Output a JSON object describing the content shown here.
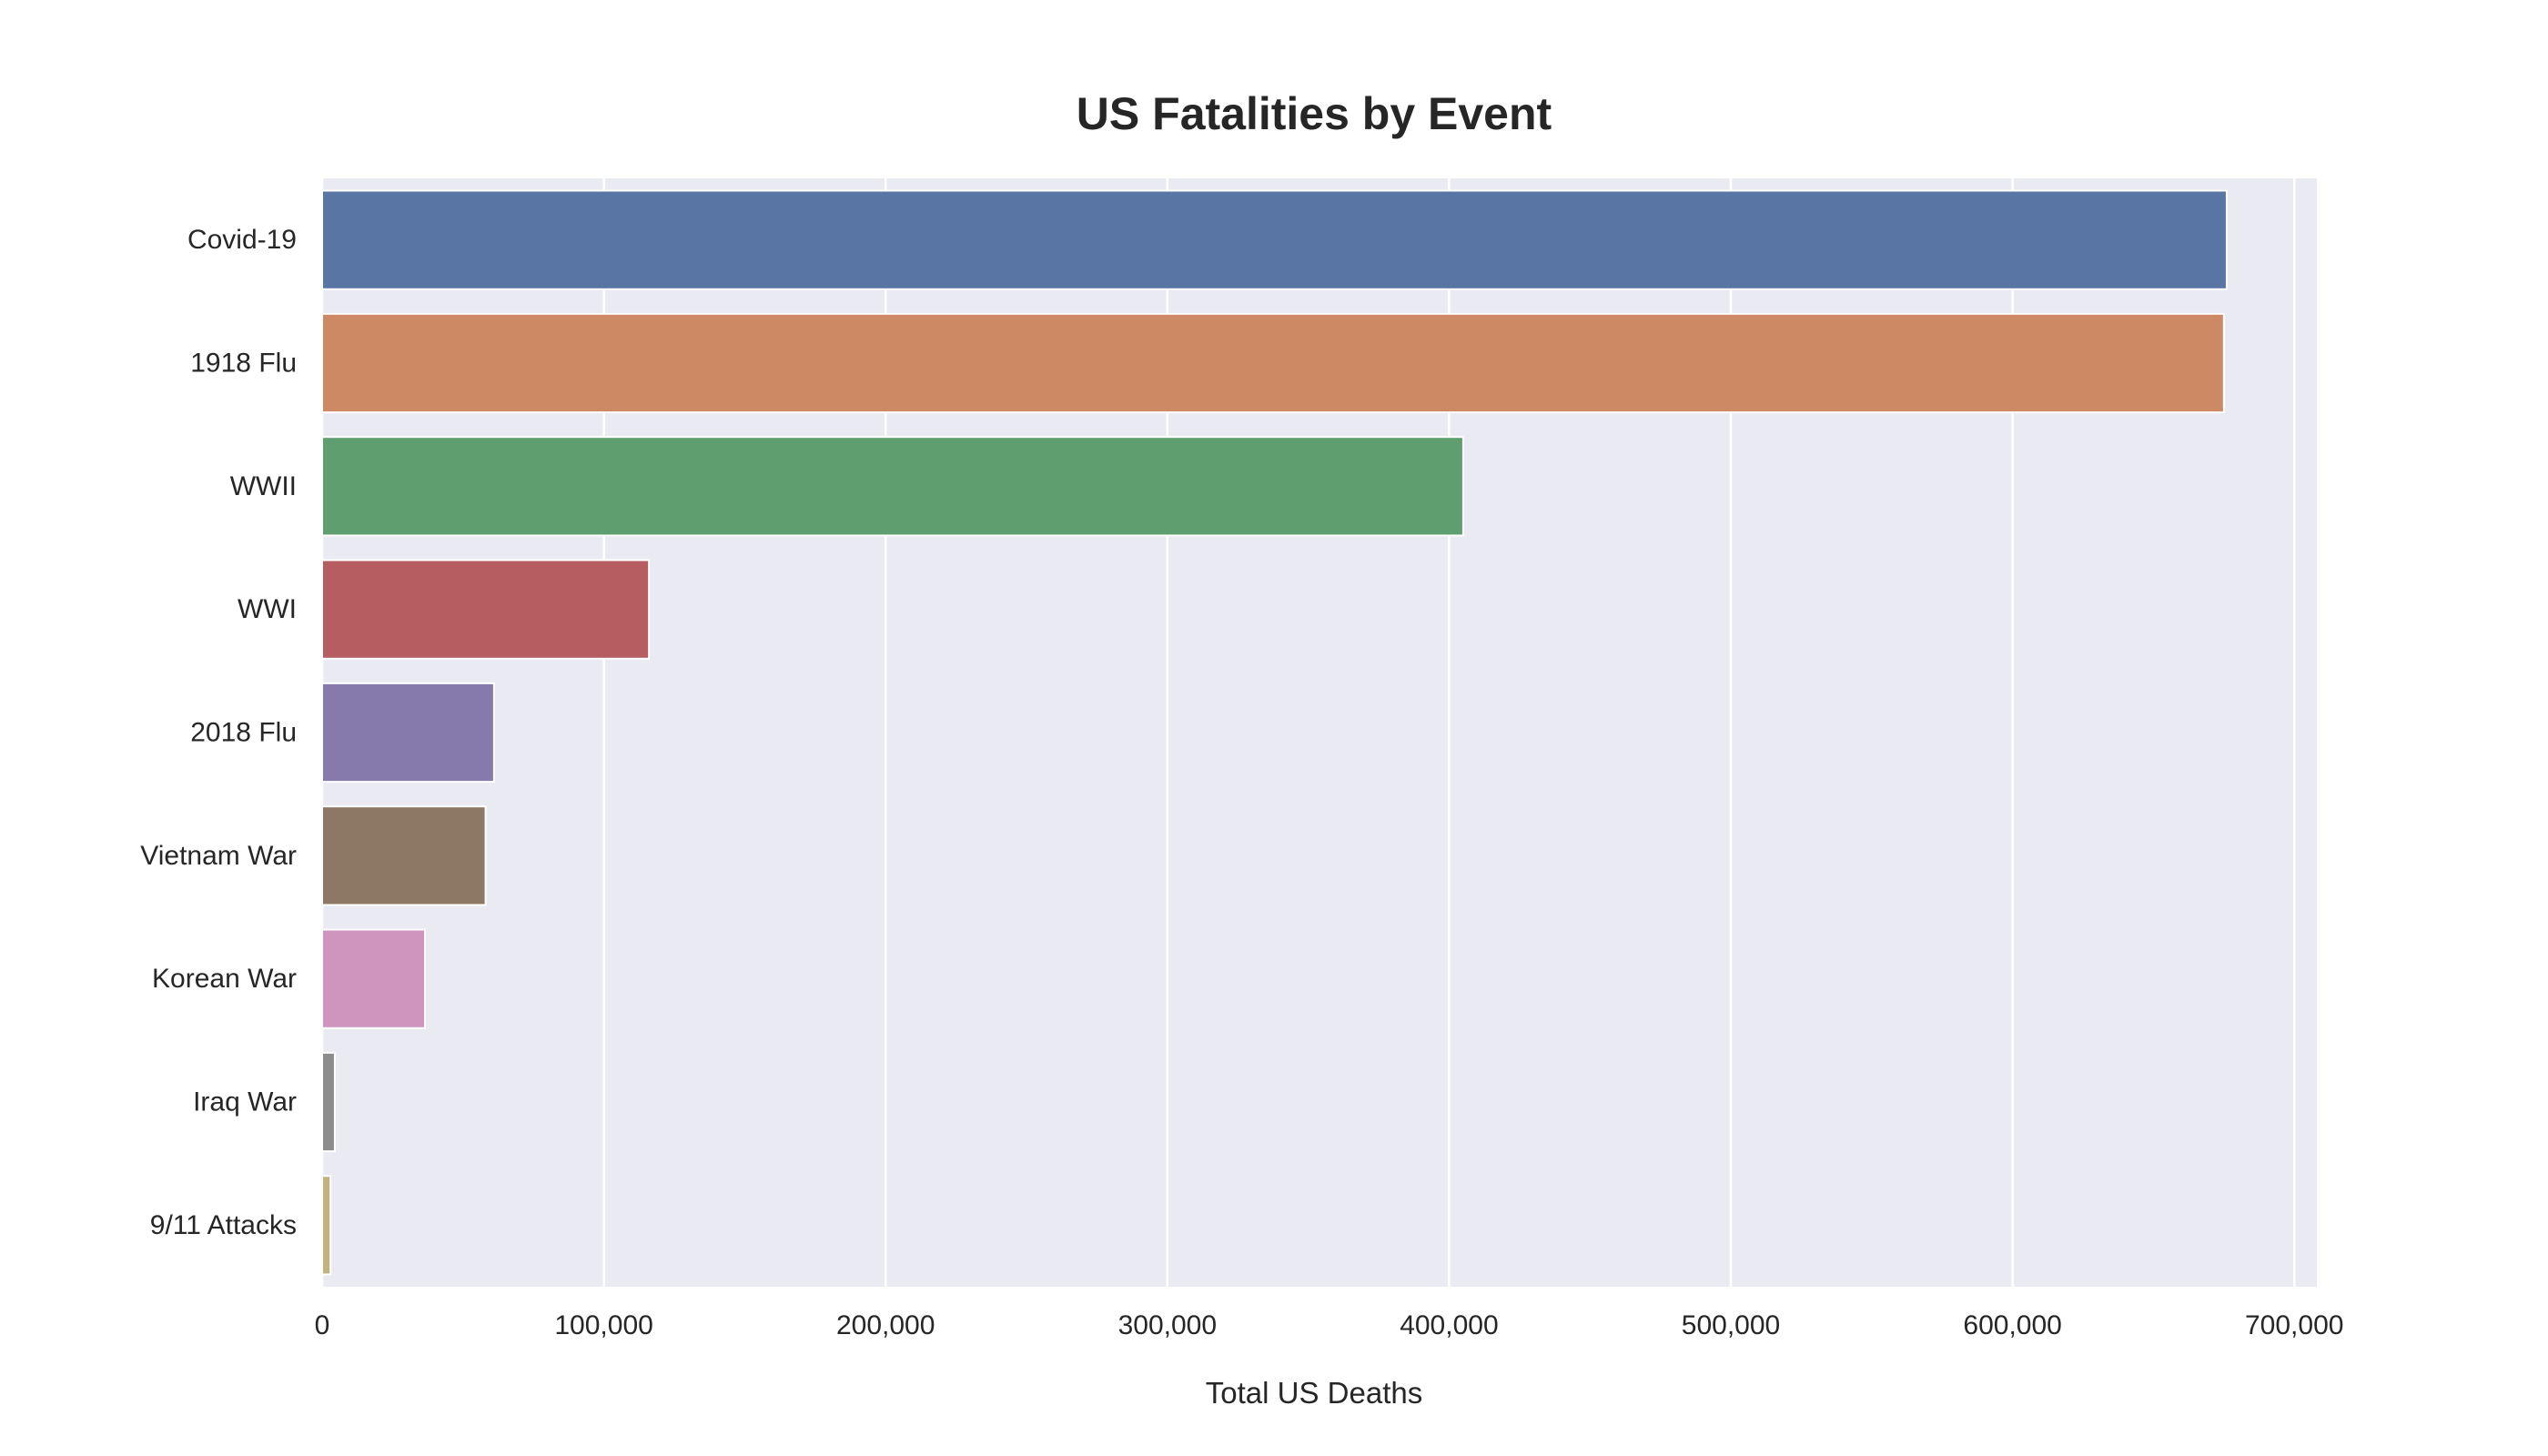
{
  "chart_data": {
    "type": "bar",
    "orientation": "horizontal",
    "title": "US Fatalities by Event",
    "xlabel": "Total US Deaths",
    "ylabel": "",
    "xlim": [
      0,
      708000
    ],
    "xticks": [
      0,
      100000,
      200000,
      300000,
      400000,
      500000,
      600000,
      700000
    ],
    "xtick_labels": [
      "0",
      "100,000",
      "200,000",
      "300,000",
      "400,000",
      "500,000",
      "600,000",
      "700,000"
    ],
    "grid": true,
    "legend": "none",
    "categories": [
      "Covid-19",
      "1918 Flu",
      "WWII",
      "WWI",
      "2018 Flu",
      "Vietnam War",
      "Korean War",
      "Iraq War",
      "9/11 Attacks"
    ],
    "values": [
      676000,
      675000,
      405000,
      116000,
      61000,
      58000,
      36500,
      4500,
      2977
    ],
    "colors": [
      "#5975a4",
      "#cc8963",
      "#5f9e6e",
      "#b55d60",
      "#857aab",
      "#8d7866",
      "#d095bf",
      "#8c8c8c",
      "#c1b37f"
    ],
    "background_color": "#eaeaf2",
    "grid_color": "#ffffff"
  }
}
